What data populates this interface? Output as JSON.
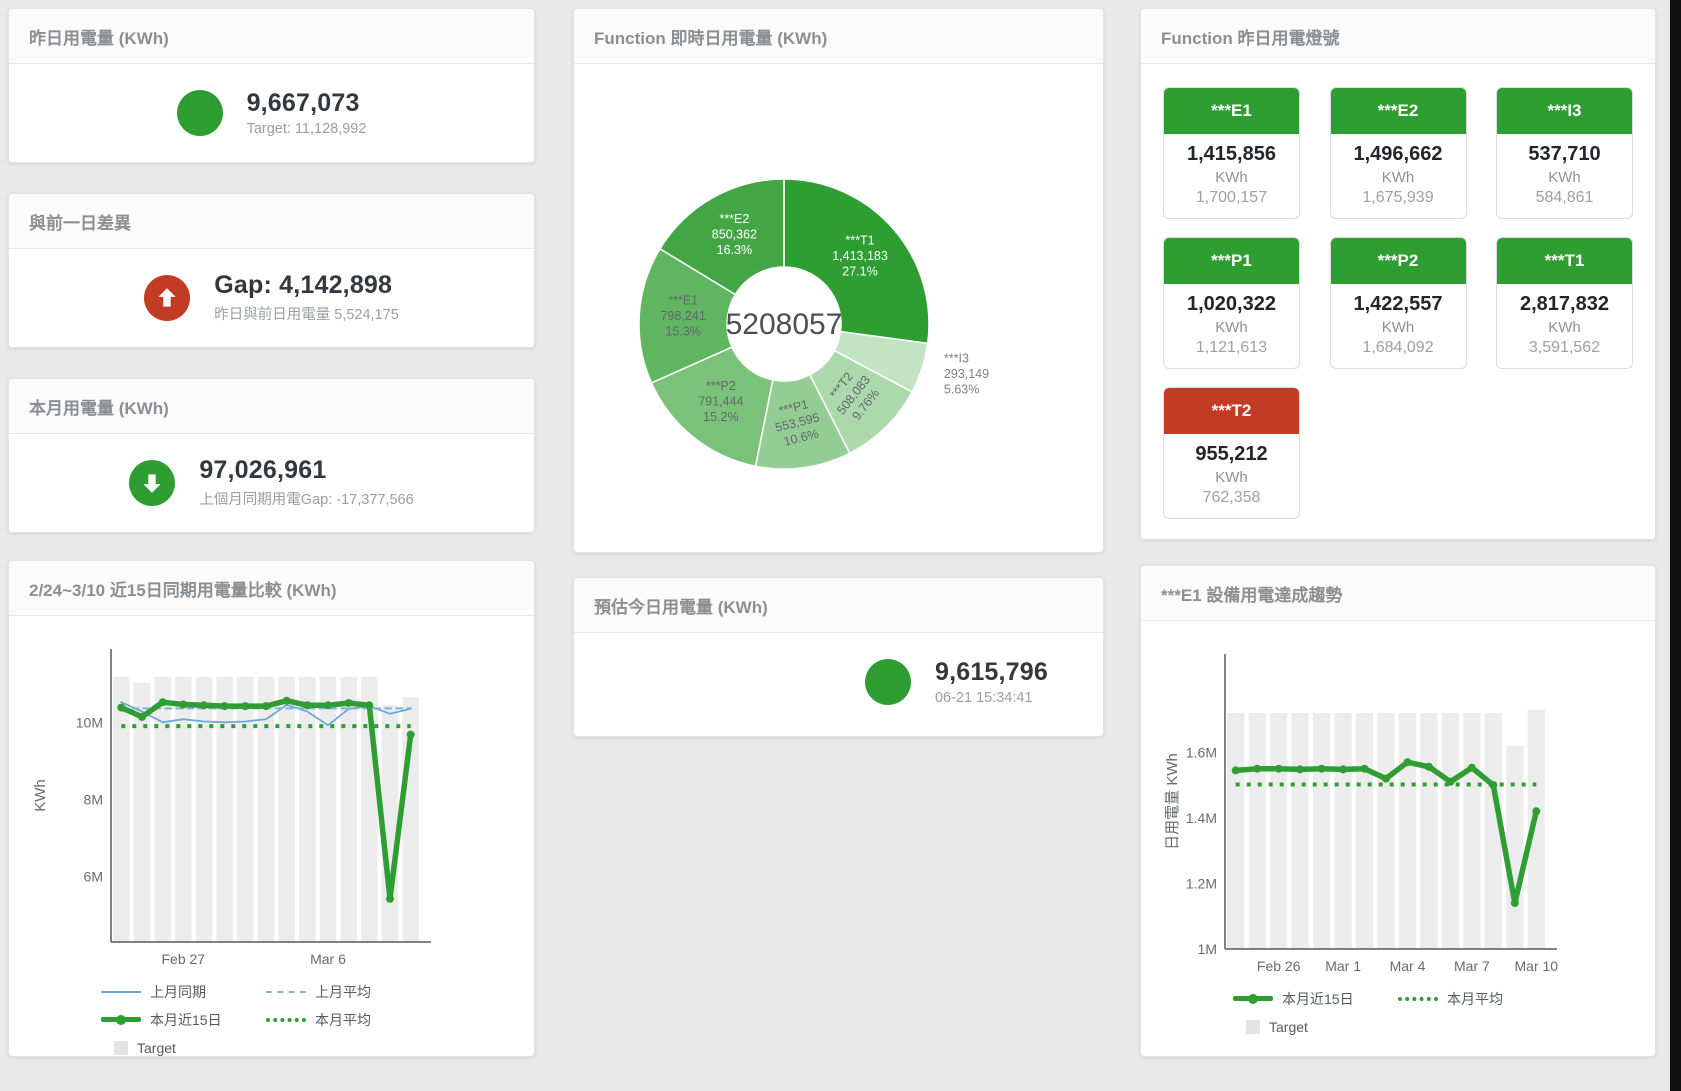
{
  "cards": {
    "yesterday": {
      "title": "昨日用電量 (KWh)",
      "icon": "green-circle",
      "value": "9,667,073",
      "sub": "Target: 11,128,992"
    },
    "day_gap": {
      "title": "與前一日差異",
      "icon": "red-up-arrow",
      "value": "Gap: 4,142,898",
      "sub": "昨日與前日用電量 5,524,175"
    },
    "month": {
      "title": "本月用電量 (KWh)",
      "icon": "green-down-arrow",
      "value": "97,026,961",
      "sub": "上個月同期用電Gap: -17,377,566"
    },
    "forecast": {
      "title": "預估今日用電量 (KWh)",
      "icon": "green-circle",
      "value": "9,615,796",
      "sub": "06-21 15:34:41"
    },
    "realtime_donut": {
      "title": "Function 即時日用電量 (KWh)",
      "center_total": "5208057"
    },
    "lights": {
      "title": "Function 昨日用電燈號",
      "tiles": [
        {
          "label": "***E1",
          "value": "1,415,856",
          "unit": "KWh",
          "target": "1,700,157",
          "status": "green"
        },
        {
          "label": "***E2",
          "value": "1,496,662",
          "unit": "KWh",
          "target": "1,675,939",
          "status": "green"
        },
        {
          "label": "***I3",
          "value": "537,710",
          "unit": "KWh",
          "target": "584,861",
          "status": "green"
        },
        {
          "label": "***P1",
          "value": "1,020,322",
          "unit": "KWh",
          "target": "1,121,613",
          "status": "green"
        },
        {
          "label": "***P2",
          "value": "1,422,557",
          "unit": "KWh",
          "target": "1,684,092",
          "status": "green"
        },
        {
          "label": "***T1",
          "value": "2,817,832",
          "unit": "KWh",
          "target": "3,591,562",
          "status": "green"
        },
        {
          "label": "***T2",
          "value": "955,212",
          "unit": "KWh",
          "target": "762,358",
          "status": "red"
        }
      ]
    },
    "compare_chart": {
      "title": "2/24~3/10 近15日同期用電量比較 (KWh)"
    },
    "trend_chart": {
      "title": "***E1 設備用電達成趨勢"
    }
  },
  "colors": {
    "green": "#2e9e33",
    "red": "#c23b25",
    "bar_gray": "#ececec",
    "blue_line": "#6ea8d8",
    "blue_dash": "#7fb2dc",
    "green_line": "#2f9e32"
  },
  "chart_data": [
    {
      "id": "donut",
      "type": "pie",
      "title": "Function 即時日用電量 (KWh)",
      "center_total": "5208057",
      "legend_position": "none",
      "segments": [
        {
          "name": "***T1",
          "value": 1413183,
          "pct": "27.1%",
          "color": "#2f9e32",
          "label_color": "#ffffff"
        },
        {
          "name": "***I3",
          "value": 293149,
          "pct": "5.63%",
          "color": "#c3e4c3",
          "label_color": "#7d8287",
          "outside": true
        },
        {
          "name": "***T2",
          "value": 508083,
          "pct": "9.76%",
          "color": "#abd9ab",
          "label_color": "#63686d",
          "rotate": -52
        },
        {
          "name": "***P1",
          "value": 553595,
          "pct": "10.6%",
          "color": "#93cd93",
          "label_color": "#63686d",
          "rotate": -14
        },
        {
          "name": "***P2",
          "value": 791444,
          "pct": "15.2%",
          "color": "#7ac27a",
          "label_color": "#63686d"
        },
        {
          "name": "***E1",
          "value": 798241,
          "pct": "15.3%",
          "color": "#60b560",
          "label_color": "#63686d"
        },
        {
          "name": "***E2",
          "value": 850362,
          "pct": "16.3%",
          "color": "#43a645",
          "label_color": "#ffffff"
        }
      ]
    },
    {
      "id": "compare",
      "type": "line+bar",
      "title": "2/24~3/10 近15日同期用電量比較 (KWh)",
      "ylabel": "KWh",
      "n": 15,
      "ylim": [
        4300000,
        11900000
      ],
      "grid": false,
      "yticks": [
        {
          "v": 6000000,
          "label": "6M"
        },
        {
          "v": 8000000,
          "label": "8M"
        },
        {
          "v": 10000000,
          "label": "10M"
        }
      ],
      "xticks": [
        {
          "i": 3,
          "label": "Feb 27"
        },
        {
          "i": 10,
          "label": "Mar 6"
        }
      ],
      "target_bars": [
        11180000,
        11020000,
        11180000,
        11180000,
        11180000,
        11180000,
        11180000,
        11180000,
        11180000,
        11180000,
        11180000,
        11180000,
        11180000,
        10450000,
        10650000
      ],
      "series": [
        {
          "name": "上月同期",
          "style": "thin",
          "color": "#6ea8d8",
          "values": [
            10520000,
            10280000,
            10000000,
            10080000,
            10020000,
            10000000,
            10020000,
            10080000,
            10450000,
            10280000,
            9920000,
            10350000,
            10420000,
            10220000,
            10350000
          ]
        },
        {
          "name": "上月平均",
          "style": "dash",
          "color": "#7fb2dc",
          "const": 10360000
        },
        {
          "name": "本月近15日",
          "style": "thick",
          "color": "#2f9e32",
          "dots": true,
          "values": [
            10380000,
            10140000,
            10520000,
            10460000,
            10440000,
            10420000,
            10420000,
            10420000,
            10560000,
            10440000,
            10440000,
            10500000,
            10440000,
            5420000,
            9680000
          ]
        },
        {
          "name": "本月平均",
          "style": "dot",
          "color": "#2f9e32",
          "const": 9900000
        }
      ],
      "legend": [
        {
          "label": "上月同期",
          "marker": "blue-line"
        },
        {
          "label": "上月平均",
          "marker": "blue-dash"
        },
        {
          "label": "本月近15日",
          "marker": "green-thick"
        },
        {
          "label": "本月平均",
          "marker": "green-dot"
        },
        {
          "label": "Target",
          "marker": "gray-square"
        }
      ]
    },
    {
      "id": "trend",
      "type": "line+bar",
      "title": "***E1 設備用電達成趨勢",
      "ylabel": "日用電量 KWh",
      "n": 15,
      "ylim": [
        1000000,
        1900000
      ],
      "grid": false,
      "yticks": [
        {
          "v": 1000000,
          "label": "1M"
        },
        {
          "v": 1200000,
          "label": "1.2M"
        },
        {
          "v": 1400000,
          "label": "1.4M"
        },
        {
          "v": 1600000,
          "label": "1.6M"
        }
      ],
      "xticks": [
        {
          "i": 2,
          "label": "Feb 26"
        },
        {
          "i": 5,
          "label": "Mar 1"
        },
        {
          "i": 8,
          "label": "Mar 4"
        },
        {
          "i": 11,
          "label": "Mar 7"
        },
        {
          "i": 14,
          "label": "Mar 10"
        }
      ],
      "target_bars": [
        1720000,
        1720000,
        1720000,
        1720000,
        1720000,
        1720000,
        1720000,
        1720000,
        1720000,
        1720000,
        1720000,
        1720000,
        1720000,
        1620000,
        1730000
      ],
      "series": [
        {
          "name": "本月近15日",
          "style": "thick",
          "color": "#2f9e32",
          "dots": true,
          "values": [
            1545000,
            1550000,
            1550000,
            1548000,
            1550000,
            1548000,
            1550000,
            1520000,
            1570000,
            1556000,
            1510000,
            1553000,
            1500000,
            1140000,
            1420000
          ]
        },
        {
          "name": "本月平均",
          "style": "dot",
          "color": "#2f9e32",
          "const": 1502000
        }
      ],
      "legend": [
        {
          "label": "本月近15日",
          "marker": "green-thick"
        },
        {
          "label": "本月平均",
          "marker": "green-dot"
        },
        {
          "label": "Target",
          "marker": "gray-square"
        }
      ]
    }
  ]
}
